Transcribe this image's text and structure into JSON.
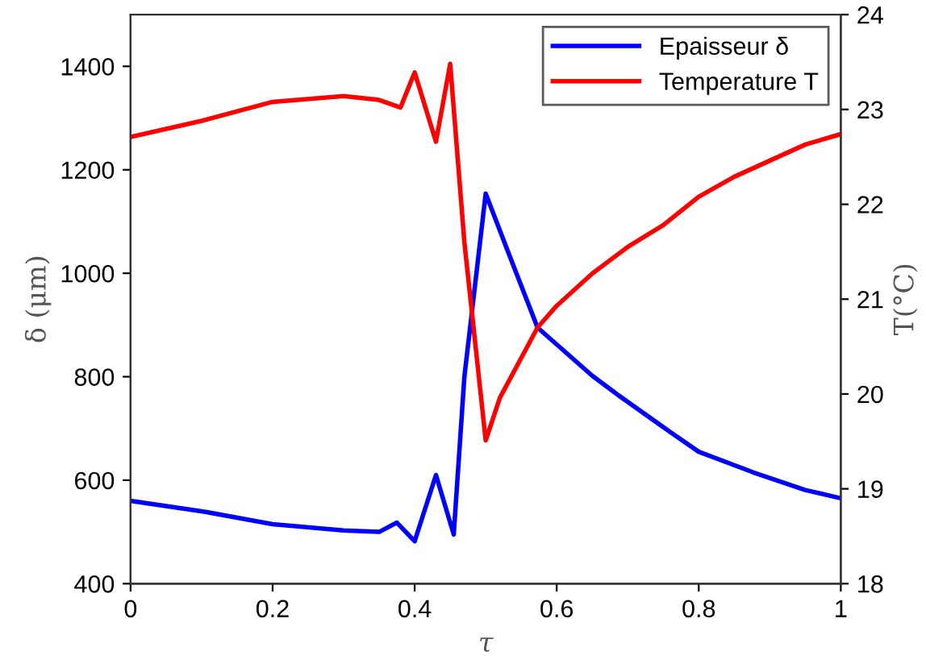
{
  "chart_data": {
    "type": "line",
    "xlabel": "τ",
    "ylabel": "δ (μm)",
    "y2label": "T(°C)",
    "xlim": [
      0,
      1
    ],
    "xticks": [
      0,
      0.2,
      0.4,
      0.6,
      0.8,
      1
    ],
    "ylim": [
      400,
      1500
    ],
    "yticks": [
      400,
      600,
      800,
      1000,
      1200,
      1400
    ],
    "y2lim": [
      18,
      24
    ],
    "y2ticks": [
      18,
      19,
      20,
      21,
      22,
      23,
      24
    ],
    "grid": false,
    "legend": "top right",
    "line_style": "solid",
    "marker": "none",
    "series": [
      {
        "name": "Epaisseur δ",
        "color": "#0000ff",
        "x": [
          0,
          0.1,
          0.2,
          0.3,
          0.35,
          0.375,
          0.4,
          0.43,
          0.455,
          0.47,
          0.5,
          0.535,
          0.573,
          0.65,
          0.687,
          0.725,
          0.76,
          0.8,
          0.877,
          0.95,
          1
        ],
        "values": [
          560,
          540,
          515,
          503,
          500,
          518,
          482,
          610,
          495,
          800,
          1154,
          1029,
          895,
          802,
          764,
          727,
          693,
          655,
          615,
          581,
          565
        ]
      },
      {
        "name": "Temperature T",
        "color": "#ff0000",
        "axis": "y2",
        "x": [
          0,
          0.1,
          0.2,
          0.3,
          0.35,
          0.38,
          0.4,
          0.43,
          0.45,
          0.47,
          0.5,
          0.52,
          0.573,
          0.6,
          0.65,
          0.7,
          0.75,
          0.8,
          0.85,
          0.9,
          0.95,
          1
        ],
        "values": [
          22.71,
          22.88,
          23.08,
          23.14,
          23.1,
          23.02,
          23.39,
          22.66,
          23.48,
          21.6,
          19.51,
          19.96,
          20.7,
          20.93,
          21.27,
          21.55,
          21.78,
          22.08,
          22.29,
          22.46,
          22.63,
          22.74
        ]
      }
    ]
  }
}
